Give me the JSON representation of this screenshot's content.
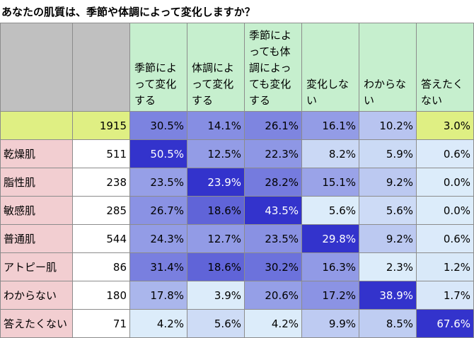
{
  "title": "あなたの肌質は、季節や体調によって変化しますか？",
  "headers": [
    "季節によって変化する",
    "体調によって変化する",
    "季節によっても体調によっても変化する",
    "変化しない",
    "わからない",
    "答えたくない"
  ],
  "total": {
    "n": "1915",
    "values": [
      "30.5%",
      "14.1%",
      "26.1%",
      "16.1%",
      "10.2%",
      "3.0%"
    ]
  },
  "rows": [
    {
      "label": "乾燥肌",
      "n": "511",
      "values": [
        "50.5%",
        "12.5%",
        "22.3%",
        "8.2%",
        "5.9%",
        "0.6%"
      ]
    },
    {
      "label": "脂性肌",
      "n": "238",
      "values": [
        "23.5%",
        "23.9%",
        "28.2%",
        "15.1%",
        "9.2%",
        "0.0%"
      ]
    },
    {
      "label": "敏感肌",
      "n": "285",
      "values": [
        "26.7%",
        "18.6%",
        "43.5%",
        "5.6%",
        "5.6%",
        "0.0%"
      ]
    },
    {
      "label": "普通肌",
      "n": "544",
      "values": [
        "24.3%",
        "12.7%",
        "23.5%",
        "29.8%",
        "9.2%",
        "0.6%"
      ]
    },
    {
      "label": "アトピー肌",
      "n": "86",
      "values": [
        "31.4%",
        "18.6%",
        "30.2%",
        "16.3%",
        "2.3%",
        "1.2%"
      ]
    },
    {
      "label": "わからない",
      "n": "180",
      "values": [
        "17.8%",
        "3.9%",
        "20.6%",
        "17.2%",
        "38.9%",
        "1.7%"
      ]
    },
    {
      "label": "答えたくない",
      "n": "71",
      "values": [
        "4.2%",
        "5.6%",
        "4.2%",
        "9.9%",
        "8.5%",
        "67.6%"
      ]
    }
  ],
  "colors": {
    "header_bg": "#c6efce",
    "blank_header_bg": "#c0c0c0",
    "row_label_bg": "#f2ced1",
    "total_highlight_bg": "#dfef83",
    "heat_max": "#3333cc",
    "heat_min": "#dcecfa"
  },
  "chart_data": {
    "type": "table",
    "title": "あなたの肌質は、季節や体調によって変化しますか？",
    "columns": [
      "季節によって変化する",
      "体調によって変化する",
      "季節によっても体調によっても変化する",
      "変化しない",
      "わからない",
      "答えたくない"
    ],
    "rows": [
      {
        "label": "",
        "n": 1915,
        "values": [
          30.5,
          14.1,
          26.1,
          16.1,
          10.2,
          3.0
        ]
      },
      {
        "label": "乾燥肌",
        "n": 511,
        "values": [
          50.5,
          12.5,
          22.3,
          8.2,
          5.9,
          0.6
        ]
      },
      {
        "label": "脂性肌",
        "n": 238,
        "values": [
          23.5,
          23.9,
          28.2,
          15.1,
          9.2,
          0.0
        ]
      },
      {
        "label": "敏感肌",
        "n": 285,
        "values": [
          26.7,
          18.6,
          43.5,
          5.6,
          5.6,
          0.0
        ]
      },
      {
        "label": "普通肌",
        "n": 544,
        "values": [
          24.3,
          12.7,
          23.5,
          29.8,
          9.2,
          0.6
        ]
      },
      {
        "label": "アトピー肌",
        "n": 86,
        "values": [
          31.4,
          18.6,
          30.2,
          16.3,
          2.3,
          1.2
        ]
      },
      {
        "label": "わからない",
        "n": 180,
        "values": [
          17.8,
          3.9,
          20.6,
          17.2,
          38.9,
          1.7
        ]
      },
      {
        "label": "答えたくない",
        "n": 71,
        "values": [
          4.2,
          5.6,
          4.2,
          9.9,
          8.5,
          67.6
        ]
      }
    ]
  }
}
